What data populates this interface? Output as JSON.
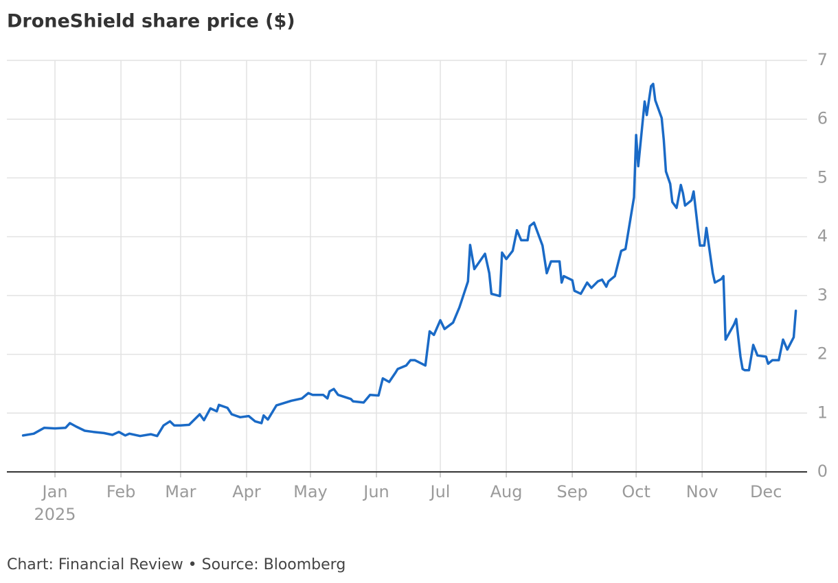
{
  "chart_data": {
    "type": "line",
    "title": "DroneShield share price ($)",
    "x_sublabel": "2025",
    "source": "Chart: Financial Review • Source: Bloomberg",
    "color": "#1a6ac6",
    "x": [
      -15,
      -10,
      -5,
      0,
      5,
      7,
      10,
      14,
      18,
      23,
      27,
      30,
      33,
      35,
      40,
      45,
      48,
      51,
      54,
      56,
      59,
      63,
      68,
      70,
      73,
      76,
      77,
      81,
      83,
      87,
      91,
      94,
      97,
      98,
      100,
      104,
      111,
      116,
      119,
      121,
      126,
      128,
      129,
      131,
      133,
      139,
      140,
      145,
      148,
      152,
      154,
      157,
      160,
      161,
      165,
      167,
      169,
      174,
      176,
      178,
      181,
      183,
      187,
      190,
      194,
      195,
      197,
      202,
      204,
      205,
      209,
      210,
      212,
      215,
      217,
      219,
      222,
      223,
      225,
      229,
      231,
      233,
      237,
      238,
      239,
      243,
      244,
      247,
      250,
      252,
      255,
      257,
      259,
      260,
      263,
      266,
      268,
      272,
      273,
      274,
      277,
      278,
      280,
      281,
      282,
      285,
      286,
      287,
      289,
      290,
      292,
      294,
      295,
      296,
      299,
      300,
      302,
      303,
      305,
      306,
      309,
      310,
      313,
      314,
      315,
      319,
      320,
      322,
      323,
      324,
      326,
      328,
      330,
      334,
      335,
      337,
      340,
      342,
      344,
      347,
      348
    ],
    "values": [
      0.62,
      0.65,
      0.75,
      0.74,
      0.75,
      0.83,
      0.77,
      0.7,
      0.68,
      0.66,
      0.63,
      0.68,
      0.62,
      0.65,
      0.61,
      0.64,
      0.61,
      0.79,
      0.86,
      0.79,
      0.79,
      0.8,
      0.98,
      0.88,
      1.08,
      1.03,
      1.14,
      1.09,
      0.98,
      0.93,
      0.95,
      0.86,
      0.83,
      0.96,
      0.89,
      1.13,
      1.21,
      1.25,
      1.34,
      1.31,
      1.31,
      1.25,
      1.37,
      1.41,
      1.31,
      1.24,
      1.2,
      1.18,
      1.31,
      1.3,
      1.59,
      1.53,
      1.69,
      1.75,
      1.81,
      1.9,
      1.9,
      1.81,
      2.39,
      2.33,
      2.58,
      2.43,
      2.54,
      2.8,
      3.24,
      3.86,
      3.45,
      3.71,
      3.38,
      3.03,
      2.99,
      3.73,
      3.62,
      3.76,
      4.11,
      3.94,
      3.94,
      4.18,
      4.24,
      3.85,
      3.38,
      3.58,
      3.58,
      3.22,
      3.33,
      3.26,
      3.08,
      3.03,
      3.22,
      3.13,
      3.24,
      3.27,
      3.15,
      3.24,
      3.33,
      3.76,
      3.79,
      4.67,
      5.73,
      5.2,
      6.3,
      6.07,
      6.56,
      6.6,
      6.32,
      6.02,
      5.64,
      5.11,
      4.9,
      4.59,
      4.49,
      4.88,
      4.74,
      4.53,
      4.62,
      4.77,
      4.14,
      3.85,
      3.85,
      4.15,
      3.38,
      3.22,
      3.28,
      3.33,
      2.25,
      2.51,
      2.6,
      1.96,
      1.75,
      1.73,
      1.73,
      2.16,
      1.98,
      1.96,
      1.84,
      1.9,
      1.9,
      2.25,
      2.08,
      2.29,
      2.74
    ],
    "xlim": [
      -22.6,
      353.3
    ],
    "xticks": [
      {
        "value": 0,
        "label": "Jan"
      },
      {
        "value": 31,
        "label": "Feb"
      },
      {
        "value": 59,
        "label": "Mar"
      },
      {
        "value": 90,
        "label": "Apr"
      },
      {
        "value": 120,
        "label": "May"
      },
      {
        "value": 151,
        "label": "Jun"
      },
      {
        "value": 181,
        "label": "Jul"
      },
      {
        "value": 212,
        "label": "Aug"
      },
      {
        "value": 243,
        "label": "Sep"
      },
      {
        "value": 273,
        "label": "Oct"
      },
      {
        "value": 304,
        "label": "Nov"
      },
      {
        "value": 334,
        "label": "Dec"
      }
    ],
    "ylim": [
      0,
      7
    ],
    "yticks": [
      0,
      1,
      2,
      3,
      4,
      5,
      6,
      7
    ],
    "grid": true
  }
}
